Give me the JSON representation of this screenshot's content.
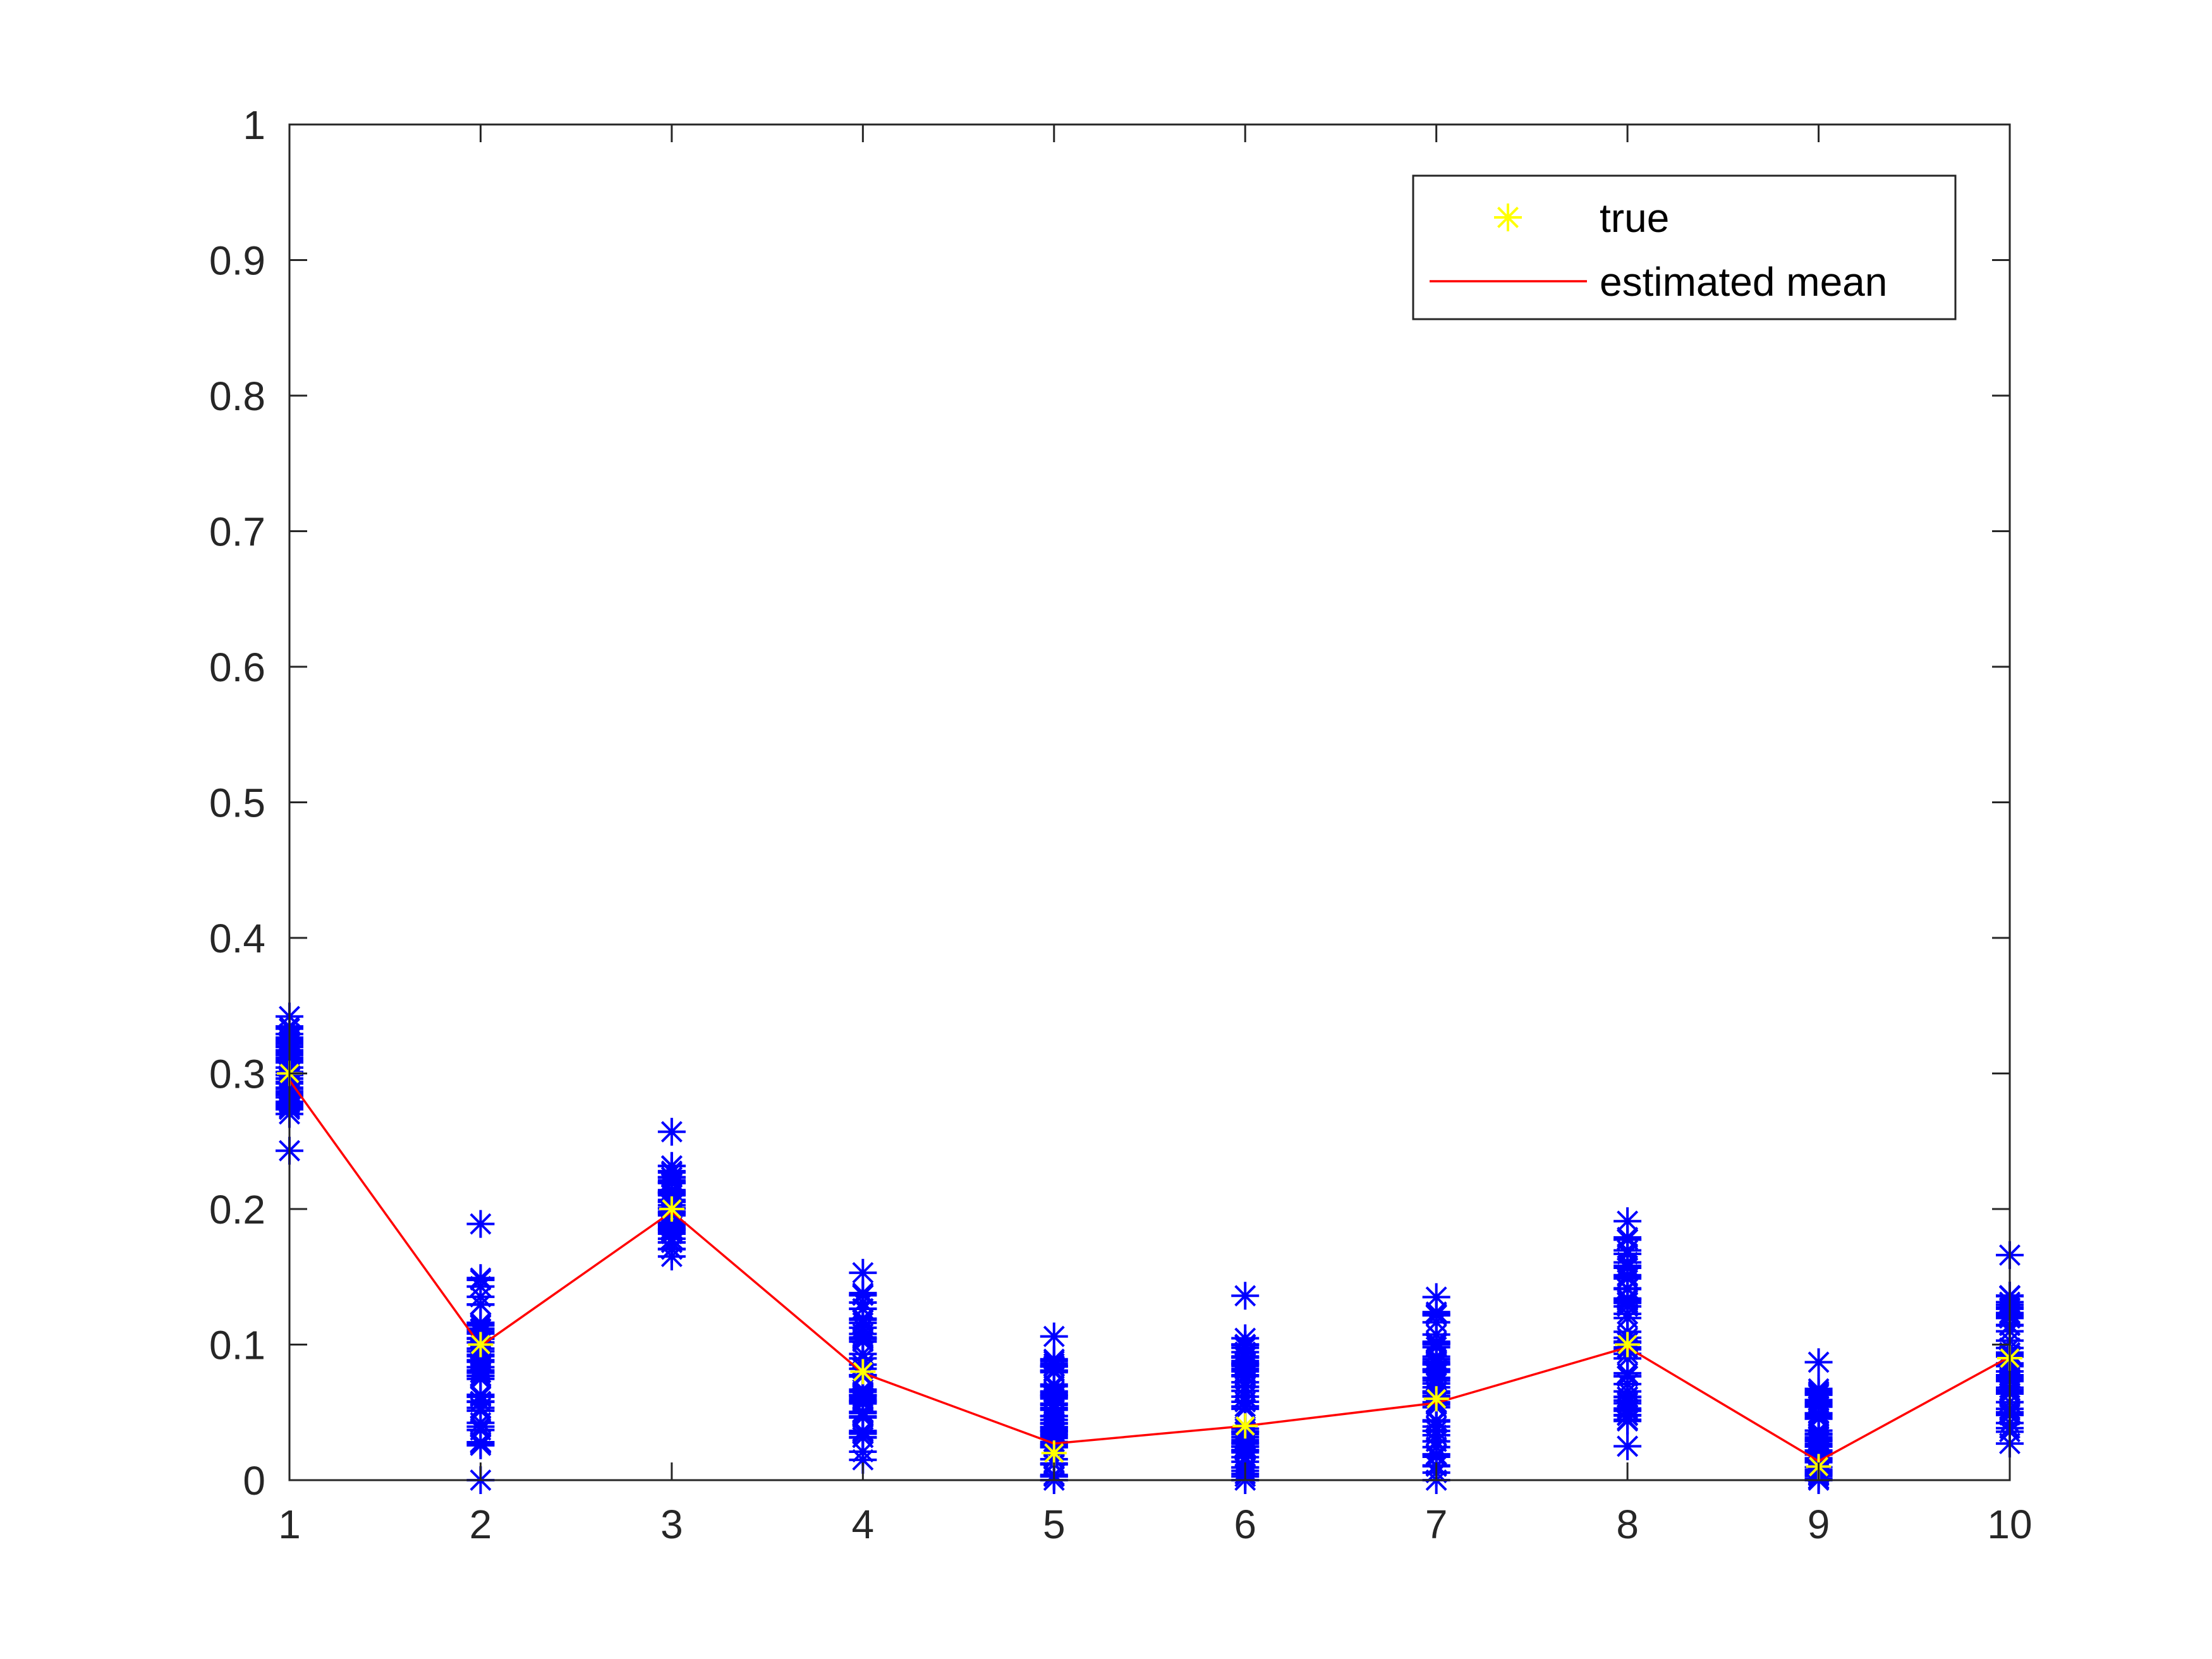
{
  "chart_data": {
    "type": "scatter",
    "title": "",
    "xlabel": "",
    "ylabel": "",
    "xlim": [
      1,
      10
    ],
    "ylim": [
      0,
      1
    ],
    "xticks": [
      "1",
      "2",
      "3",
      "4",
      "5",
      "6",
      "7",
      "8",
      "9",
      "10"
    ],
    "yticks": [
      "0",
      "0.1",
      "0.2",
      "0.3",
      "0.4",
      "0.5",
      "0.6",
      "0.7",
      "0.8",
      "0.9",
      "1"
    ],
    "grid": false,
    "legend_position": "top-right",
    "legend": [
      {
        "label": "true",
        "marker": "asterisk",
        "color": "#ffff00"
      },
      {
        "label": "estimated mean",
        "marker": "line",
        "color": "#ff0000"
      }
    ],
    "samples": {
      "name": "samples",
      "color": "#0000ff",
      "marker": "asterisk",
      "columns": [
        {
          "x": 1,
          "min": 0.243,
          "max": 0.342,
          "dense_min": 0.262,
          "dense_max": 0.335
        },
        {
          "x": 2,
          "min": 0.0,
          "max": 0.189,
          "dense_min": 0.025,
          "dense_max": 0.155
        },
        {
          "x": 3,
          "min": 0.165,
          "max": 0.257,
          "dense_min": 0.17,
          "dense_max": 0.232
        },
        {
          "x": 4,
          "min": 0.015,
          "max": 0.153,
          "dense_min": 0.02,
          "dense_max": 0.14
        },
        {
          "x": 5,
          "min": 0.0,
          "max": 0.106,
          "dense_min": 0.0,
          "dense_max": 0.09
        },
        {
          "x": 6,
          "min": 0.0,
          "max": 0.136,
          "dense_min": 0.0,
          "dense_max": 0.11
        },
        {
          "x": 7,
          "min": 0.0,
          "max": 0.135,
          "dense_min": 0.005,
          "dense_max": 0.125
        },
        {
          "x": 8,
          "min": 0.025,
          "max": 0.191,
          "dense_min": 0.04,
          "dense_max": 0.18
        },
        {
          "x": 9,
          "min": 0.0,
          "max": 0.087,
          "dense_min": 0.0,
          "dense_max": 0.07
        },
        {
          "x": 10,
          "min": 0.027,
          "max": 0.166,
          "dense_min": 0.035,
          "dense_max": 0.14
        }
      ]
    },
    "true_values": {
      "x": [
        1,
        2,
        3,
        4,
        5,
        6,
        7,
        8,
        9,
        10
      ],
      "y": [
        0.3,
        0.1,
        0.2,
        0.08,
        0.02,
        0.04,
        0.06,
        0.1,
        0.01,
        0.09
      ]
    },
    "estimated_mean": {
      "x": [
        1,
        2,
        3,
        4,
        5,
        6,
        7,
        8,
        9,
        10
      ],
      "y": [
        0.295,
        0.099,
        0.198,
        0.079,
        0.027,
        0.04,
        0.057,
        0.098,
        0.014,
        0.091
      ]
    },
    "colors": {
      "axes": "#262626",
      "samples": "#0000ff",
      "true": "#ffff00",
      "mean": "#ff0000",
      "legend_border": "#262626"
    }
  }
}
